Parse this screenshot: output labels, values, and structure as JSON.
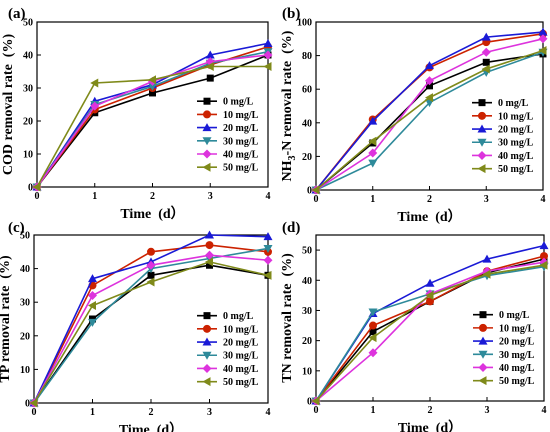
{
  "legend_labels": [
    "0 mg/L",
    "10 mg/L",
    "20 mg/L",
    "30 mg/L",
    "40 mg/L",
    "50 mg/L"
  ],
  "series_styles": [
    {
      "color": "#000000",
      "marker": "square"
    },
    {
      "color": "#cc2200",
      "marker": "circle"
    },
    {
      "color": "#1a1ad6",
      "marker": "triangle-up"
    },
    {
      "color": "#2e8a9a",
      "marker": "triangle-down"
    },
    {
      "color": "#dd33dd",
      "marker": "diamond"
    },
    {
      "color": "#7f8a1a",
      "marker": "triangle-left"
    }
  ],
  "chart_data": [
    {
      "panel_label": "(a)",
      "type": "line",
      "xlabel": "Time  (d）",
      "ylabel_parts": [
        "COD removal rate  (%)"
      ],
      "x": [
        0,
        1,
        2,
        3,
        4
      ],
      "xlim": [
        0,
        4
      ],
      "ylim": [
        0,
        50
      ],
      "yticks": [
        0,
        10,
        20,
        30,
        40,
        50
      ],
      "legend_position": "right",
      "series": [
        {
          "name": "0 mg/L",
          "values": [
            0,
            22.5,
            28.5,
            33,
            40
          ]
        },
        {
          "name": "10 mg/L",
          "values": [
            0,
            23.5,
            30,
            37,
            42.5
          ]
        },
        {
          "name": "20 mg/L",
          "values": [
            0,
            26,
            31,
            40,
            43.5
          ]
        },
        {
          "name": "30 mg/L",
          "values": [
            0,
            25,
            30.5,
            37.5,
            41
          ]
        },
        {
          "name": "40 mg/L",
          "values": [
            0,
            24.5,
            32,
            38,
            40
          ]
        },
        {
          "name": "50 mg/L",
          "values": [
            0,
            31.5,
            32.5,
            36.5,
            36.5
          ]
        }
      ]
    },
    {
      "panel_label": "(b)",
      "type": "line",
      "xlabel": "Time  (d）",
      "ylabel_parts": [
        "NH",
        "3",
        "-N removal rate  (%)"
      ],
      "x": [
        0,
        1,
        2,
        3,
        4
      ],
      "xlim": [
        0,
        4
      ],
      "ylim": [
        0,
        100
      ],
      "yticks": [
        0,
        20,
        40,
        60,
        80,
        100
      ],
      "legend_position": "right",
      "series": [
        {
          "name": "0 mg/L",
          "values": [
            0,
            28,
            62,
            76,
            81
          ]
        },
        {
          "name": "10 mg/L",
          "values": [
            0,
            42,
            73,
            88,
            93
          ]
        },
        {
          "name": "20 mg/L",
          "values": [
            0,
            41,
            74,
            91,
            94
          ]
        },
        {
          "name": "30 mg/L",
          "values": [
            0,
            16,
            52,
            70,
            82
          ]
        },
        {
          "name": "40 mg/L",
          "values": [
            0,
            22,
            65,
            82,
            90
          ]
        },
        {
          "name": "50 mg/L",
          "values": [
            0,
            29,
            55,
            72,
            83
          ]
        }
      ]
    },
    {
      "panel_label": "(c)",
      "type": "line",
      "xlabel": "Time  (d）",
      "ylabel_parts": [
        "TP removal rate  (%)"
      ],
      "x": [
        0,
        1,
        2,
        3,
        4
      ],
      "xlim": [
        0,
        4
      ],
      "ylim": [
        0,
        50
      ],
      "yticks": [
        0,
        10,
        20,
        30,
        40,
        50
      ],
      "legend_position": "right",
      "series": [
        {
          "name": "0 mg/L",
          "values": [
            0,
            25,
            38,
            41,
            38
          ]
        },
        {
          "name": "10 mg/L",
          "values": [
            0,
            35,
            45,
            47,
            45
          ]
        },
        {
          "name": "20 mg/L",
          "values": [
            0,
            37,
            42,
            50,
            49.5
          ]
        },
        {
          "name": "30 mg/L",
          "values": [
            0,
            24,
            40,
            43,
            46
          ]
        },
        {
          "name": "40 mg/L",
          "values": [
            0,
            32,
            41,
            44,
            42.5
          ]
        },
        {
          "name": "50 mg/L",
          "values": [
            0,
            29,
            36,
            42,
            38
          ]
        }
      ]
    },
    {
      "panel_label": "(d)",
      "type": "line",
      "xlabel": "Time  (d）",
      "ylabel_parts": [
        "TN removal rate  (%)"
      ],
      "x": [
        0,
        1,
        2,
        3,
        4
      ],
      "xlim": [
        0,
        4
      ],
      "ylim": [
        0,
        55
      ],
      "yticks": [
        0,
        10,
        20,
        30,
        40,
        50
      ],
      "legend_position": "right",
      "series": [
        {
          "name": "0 mg/L",
          "values": [
            0,
            23,
            33,
            42.5,
            47
          ]
        },
        {
          "name": "10 mg/L",
          "values": [
            0,
            25,
            33,
            43,
            48
          ]
        },
        {
          "name": "20 mg/L",
          "values": [
            0,
            29,
            39,
            47,
            51.5
          ]
        },
        {
          "name": "30 mg/L",
          "values": [
            0,
            29.5,
            35.5,
            41.5,
            44.5
          ]
        },
        {
          "name": "40 mg/L",
          "values": [
            0,
            16,
            35.5,
            43,
            46
          ]
        },
        {
          "name": "50 mg/L",
          "values": [
            0,
            21,
            35,
            42,
            45
          ]
        }
      ]
    }
  ]
}
